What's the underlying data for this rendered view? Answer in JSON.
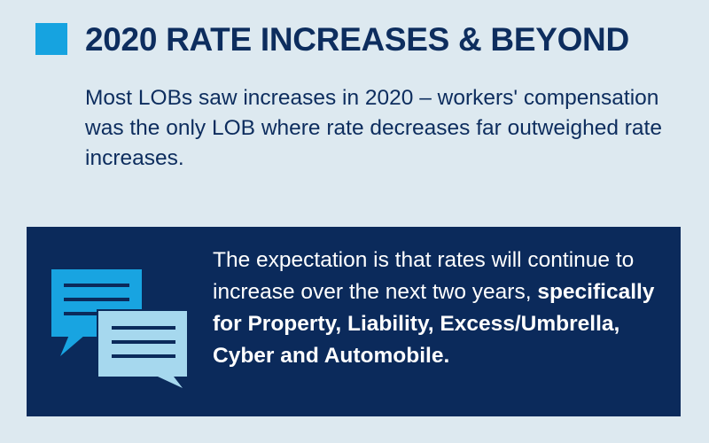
{
  "header": {
    "title": "2020 RATE INCREASES & BEYOND"
  },
  "intro": {
    "text": "Most LOBs saw increases in 2020 – workers' compensation was the only LOB where rate decreases far outweighed rate increases."
  },
  "panel": {
    "icon": "chat-bubbles-icon",
    "text_regular": "The expectation is that rates will continue to increase over the next two years, ",
    "text_bold": "specifically for Property, Liability, Excess/Umbrella, Cyber and Automobile."
  },
  "colors": {
    "background": "#dde9f0",
    "navy": "#0b2a5b",
    "accent_blue": "#16a3e0",
    "light_blue": "#a6d8ee"
  }
}
